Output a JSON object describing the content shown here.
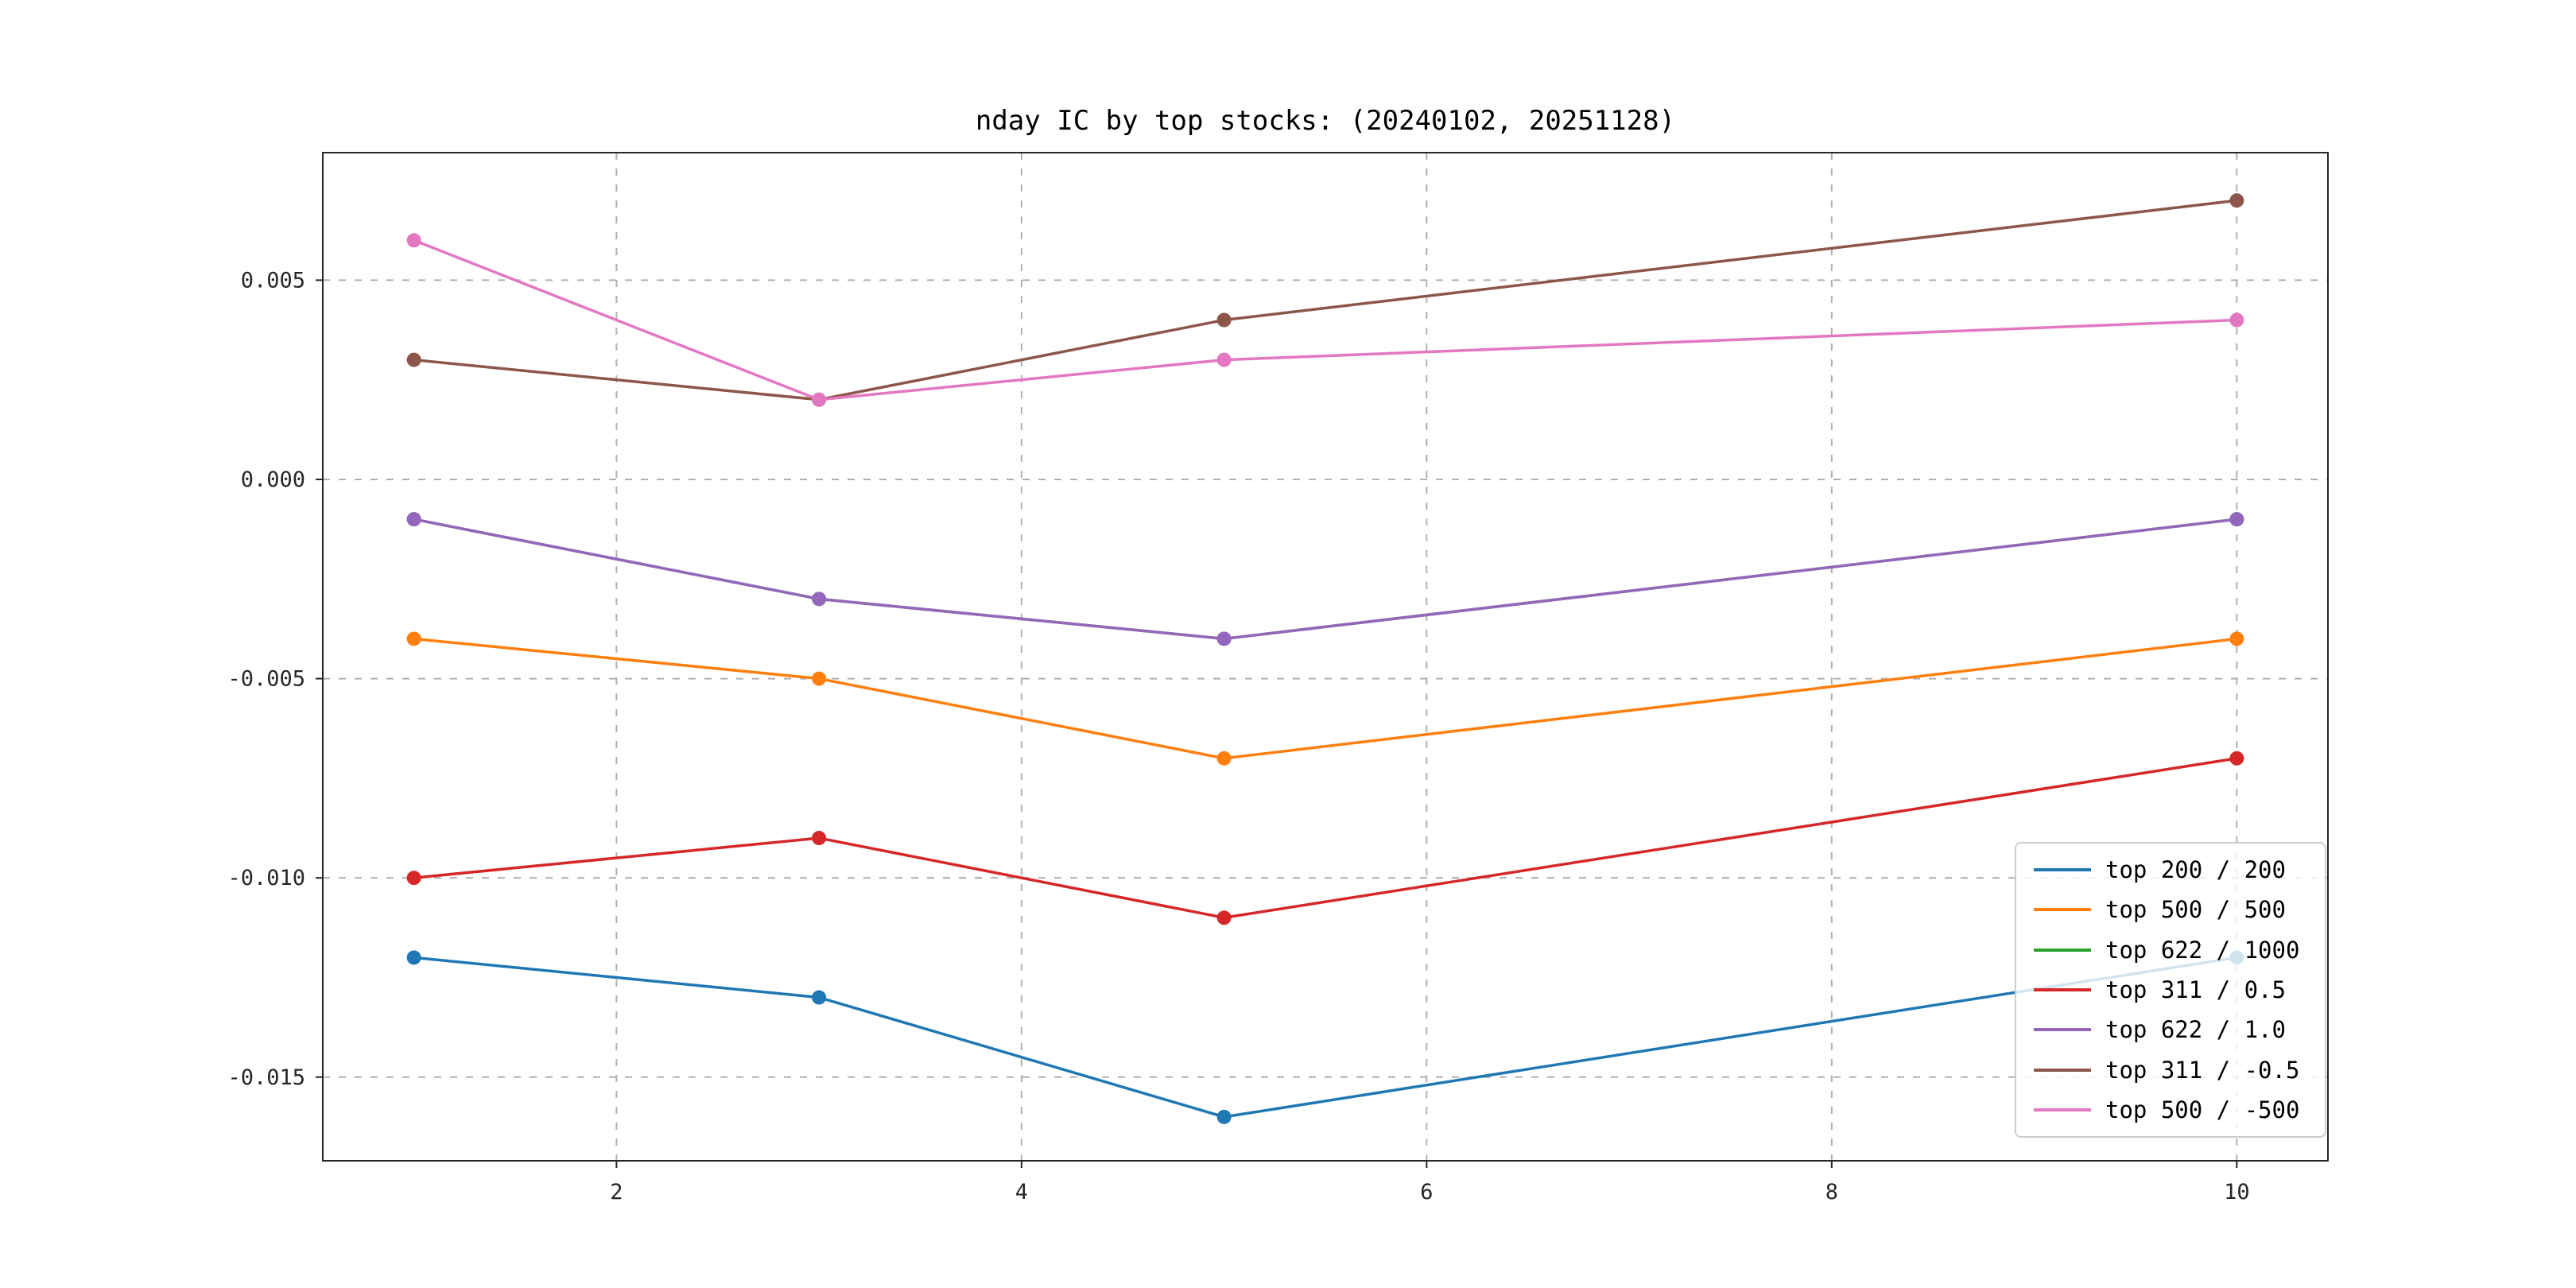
{
  "chart_data": {
    "type": "line",
    "title": "nday IC by top stocks: (20240102, 20251128)",
    "xlabel": "",
    "ylabel": "",
    "x": [
      1,
      3,
      5,
      10
    ],
    "series": [
      {
        "name": "top 200 / 200",
        "color": "#1f77b4",
        "values": [
          -0.012,
          -0.013,
          -0.016,
          -0.012
        ]
      },
      {
        "name": "top 500 / 500",
        "color": "#ff7f0e",
        "values": [
          -0.004,
          -0.005,
          -0.007,
          -0.004
        ]
      },
      {
        "name": "top 622 / 1000",
        "color": "#2ca02c",
        "values": [
          -0.001,
          -0.003,
          -0.004,
          -0.001
        ]
      },
      {
        "name": "top 311 / 0.5",
        "color": "#d62728",
        "values": [
          -0.01,
          -0.009,
          -0.011,
          -0.007
        ]
      },
      {
        "name": "top 622 / 1.0",
        "color": "#9467bd",
        "values": [
          -0.001,
          -0.003,
          -0.004,
          -0.001
        ]
      },
      {
        "name": "top 311 / -0.5",
        "color": "#8c564b",
        "values": [
          0.003,
          0.002,
          0.004,
          0.007
        ]
      },
      {
        "name": "top 500 / -500",
        "color": "#e377c2",
        "values": [
          0.006,
          0.002,
          0.003,
          0.004
        ]
      }
    ],
    "xlim": [
      0.55,
      10.45
    ],
    "ylim": [
      -0.0171,
      0.0082
    ],
    "xticks": [
      {
        "v": 2,
        "label": "2"
      },
      {
        "v": 4,
        "label": "4"
      },
      {
        "v": 6,
        "label": "6"
      },
      {
        "v": 8,
        "label": "8"
      },
      {
        "v": 10,
        "label": "10"
      }
    ],
    "yticks": [
      {
        "v": 0.005,
        "label": "0.005"
      },
      {
        "v": 0.0,
        "label": "0.000"
      },
      {
        "v": -0.005,
        "label": "-0.005"
      },
      {
        "v": -0.01,
        "label": "-0.010"
      },
      {
        "v": -0.015,
        "label": "-0.015"
      }
    ],
    "grid": true,
    "legend_position": "lower right",
    "colors": {
      "grid": "#b0b0b0",
      "axes_border": "#262626",
      "tick_label": "#262626",
      "background": "#ffffff"
    }
  }
}
